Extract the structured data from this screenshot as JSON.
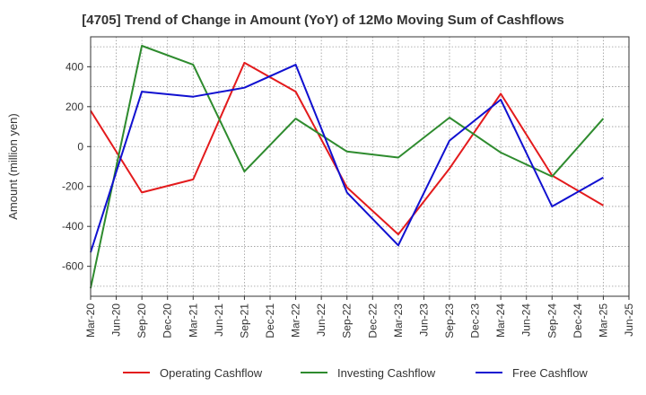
{
  "chart_data": {
    "type": "line",
    "title": "[4705]  Trend of Change in Amount (YoY) of 12Mo Moving Sum of Cashflows",
    "xlabel": "",
    "ylabel": "Amount (million yen)",
    "categories": [
      "Mar-20",
      "Jun-20",
      "Sep-20",
      "Dec-20",
      "Mar-21",
      "Jun-21",
      "Sep-21",
      "Dec-21",
      "Mar-22",
      "Jun-22",
      "Sep-22",
      "Dec-22",
      "Mar-23",
      "Jun-23",
      "Sep-23",
      "Dec-23",
      "Mar-24",
      "Jun-24",
      "Sep-24",
      "Dec-24",
      "Mar-25",
      "Jun-25"
    ],
    "ylim": [
      -750,
      550
    ],
    "yticks": [
      -600,
      -400,
      -200,
      0,
      200,
      400
    ],
    "grid": true,
    "legend_position": "bottom",
    "series": [
      {
        "name": "Operating Cashflow",
        "color": "#e31a1c",
        "values": [
          180,
          null,
          -230,
          null,
          -165,
          null,
          420,
          null,
          275,
          null,
          -205,
          null,
          -440,
          null,
          -110,
          null,
          265,
          null,
          -145,
          null,
          -295,
          null
        ]
      },
      {
        "name": "Investing Cashflow",
        "color": "#2e8b2e",
        "values": [
          -710,
          null,
          505,
          null,
          410,
          null,
          -125,
          null,
          140,
          null,
          -25,
          null,
          -55,
          null,
          145,
          null,
          -30,
          null,
          -150,
          null,
          140,
          null
        ]
      },
      {
        "name": "Free Cashflow",
        "color": "#1010d0",
        "values": [
          -530,
          null,
          275,
          null,
          250,
          null,
          295,
          null,
          410,
          null,
          -230,
          null,
          -495,
          null,
          30,
          null,
          235,
          null,
          -300,
          null,
          -155,
          null
        ]
      }
    ]
  }
}
